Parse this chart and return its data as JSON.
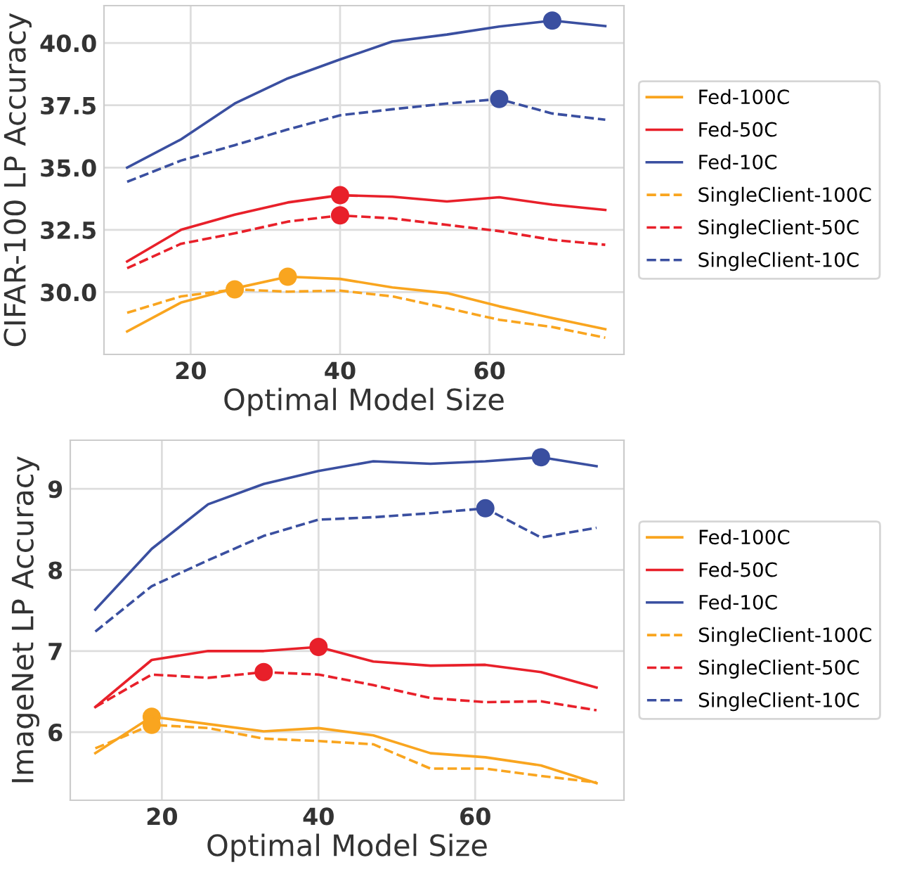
{
  "chart_data": [
    {
      "type": "line",
      "xlabel": "Optimal Model Size",
      "ylabel": "CIFAR-100 LP Accuracy",
      "xlim": [
        8.4,
        78
      ],
      "ylim": [
        27.5,
        41.5
      ],
      "xticks": [
        20,
        40,
        60
      ],
      "yticks": [
        {
          "value": 30,
          "label": "30.0"
        },
        32.5,
        {
          "value": 35,
          "label": "35.0"
        },
        37.5,
        {
          "value": 40,
          "label": "40.0"
        }
      ],
      "grid": true,
      "legend": "right",
      "x": [
        11.5,
        18.7,
        25.9,
        33,
        40,
        47,
        54.3,
        61.3,
        68.4,
        75.5
      ],
      "series": [
        {
          "name": "Fed-100C",
          "color": "#f9a51f",
          "line_style": "solid",
          "values": [
            28.42,
            29.58,
            30.15,
            30.62,
            30.53,
            30.19,
            29.96,
            29.43,
            28.96,
            28.51
          ]
        },
        {
          "name": "Fed-50C",
          "color": "#e8202a",
          "line_style": "solid",
          "values": [
            31.23,
            32.5,
            33.11,
            33.6,
            33.89,
            33.83,
            33.64,
            33.81,
            33.51,
            33.3
          ]
        },
        {
          "name": "Fed-10C",
          "color": "#3a4fa0",
          "line_style": "solid",
          "values": [
            35.0,
            36.13,
            37.57,
            38.58,
            39.34,
            40.06,
            40.34,
            40.66,
            40.9,
            40.68
          ]
        },
        {
          "name": "SingleClient-100C",
          "color": "#f9a51f",
          "line_style": "dashed",
          "values": [
            29.17,
            29.83,
            30.11,
            30.02,
            30.06,
            29.83,
            29.36,
            28.89,
            28.6,
            28.17
          ]
        },
        {
          "name": "SingleClient-50C",
          "color": "#e8202a",
          "line_style": "dashed",
          "values": [
            30.96,
            31.94,
            32.36,
            32.83,
            33.08,
            32.96,
            32.7,
            32.45,
            32.1,
            31.9
          ]
        },
        {
          "name": "SingleClient-10C",
          "color": "#3a4fa0",
          "line_style": "dashed",
          "values": [
            34.43,
            35.28,
            35.9,
            36.53,
            37.1,
            37.34,
            37.57,
            37.75,
            37.17,
            36.92
          ]
        },
        {
          "type": "scatter",
          "color": "#f9a51f",
          "x": [
            33,
            25.9
          ],
          "values": [
            30.62,
            30.11
          ]
        },
        {
          "type": "scatter",
          "color": "#e8202a",
          "x": [
            40,
            40
          ],
          "values": [
            33.89,
            33.08
          ]
        },
        {
          "type": "scatter",
          "color": "#3a4fa0",
          "x": [
            68.4,
            61.3
          ],
          "values": [
            40.9,
            37.75
          ]
        }
      ]
    },
    {
      "type": "line",
      "xlabel": "Optimal Model Size",
      "ylabel": "ImageNet LP Accuracy",
      "xlim": [
        8.3,
        79
      ],
      "ylim": [
        5.16,
        9.6
      ],
      "xticks": [
        20,
        40,
        60
      ],
      "yticks": [
        6,
        7,
        8,
        9
      ],
      "grid": true,
      "legend": "right",
      "x": [
        11.5,
        18.7,
        25.9,
        33,
        40,
        47,
        54.3,
        61.3,
        68.4,
        75.5
      ],
      "series": [
        {
          "name": "Fed-100C",
          "color": "#f9a51f",
          "line_style": "solid",
          "values": [
            5.74,
            6.19,
            6.1,
            6.01,
            6.05,
            5.96,
            5.74,
            5.69,
            5.59,
            5.37
          ]
        },
        {
          "name": "Fed-50C",
          "color": "#e8202a",
          "line_style": "solid",
          "values": [
            6.31,
            6.89,
            7.0,
            7.0,
            7.05,
            6.87,
            6.82,
            6.83,
            6.74,
            6.55
          ]
        },
        {
          "name": "Fed-10C",
          "color": "#3a4fa0",
          "line_style": "solid",
          "values": [
            7.51,
            8.26,
            8.81,
            9.06,
            9.22,
            9.34,
            9.31,
            9.34,
            9.39,
            9.28
          ]
        },
        {
          "name": "SingleClient-100C",
          "color": "#f9a51f",
          "line_style": "dashed",
          "values": [
            5.8,
            6.09,
            6.05,
            5.92,
            5.89,
            5.85,
            5.55,
            5.55,
            5.46,
            5.38
          ]
        },
        {
          "name": "SingleClient-50C",
          "color": "#e8202a",
          "line_style": "dashed",
          "values": [
            6.31,
            6.71,
            6.67,
            6.74,
            6.71,
            6.58,
            6.42,
            6.37,
            6.38,
            6.27
          ]
        },
        {
          "name": "SingleClient-10C",
          "color": "#3a4fa0",
          "line_style": "dashed",
          "values": [
            7.24,
            7.8,
            8.12,
            8.42,
            8.62,
            8.65,
            8.7,
            8.76,
            8.4,
            8.52
          ]
        },
        {
          "type": "scatter",
          "color": "#f9a51f",
          "x": [
            18.7,
            18.7
          ],
          "values": [
            6.19,
            6.09
          ]
        },
        {
          "type": "scatter",
          "color": "#e8202a",
          "x": [
            40,
            33
          ],
          "values": [
            7.05,
            6.74
          ]
        },
        {
          "type": "scatter",
          "color": "#3a4fa0",
          "x": [
            68.4,
            61.3
          ],
          "values": [
            9.39,
            8.76
          ]
        }
      ]
    }
  ]
}
